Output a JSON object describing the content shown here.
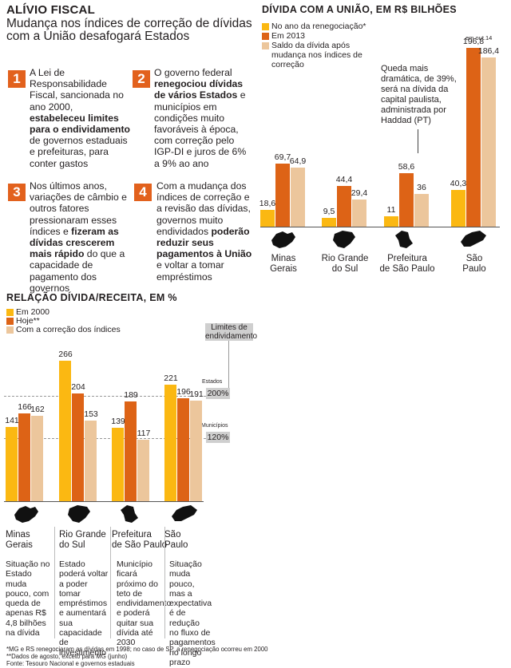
{
  "header": {
    "title": "ALÍVIO FISCAL",
    "subtitle": "Mudança nos índices de correção de dívidas com a União desafogará  Estados"
  },
  "steps": [
    {
      "num": "1",
      "html": "A Lei de Responsabilidade Fiscal, sancionada no ano 2000, <b>estabeleceu limites para o endividamento</b> de governos estaduais e prefeituras, para conter gastos"
    },
    {
      "num": "2",
      "html": "O governo federal <b>renegociou dívidas de vários Estados</b> e municípios em condições muito favoráveis à época, com correção pelo IGP-DI e juros de 6% a 9% ao ano"
    },
    {
      "num": "3",
      "html": "Nos últimos anos, variações de câmbio e outros fatores pressionaram esses índices e <b>fizeram as dívidas crescerem mais rápido</b> do que a capacidade de pagamento dos governos"
    },
    {
      "num": "4",
      "html": "Com a mudança dos índices de correção e a revisão das dívidas, governos muito endividados <b>poderão reduzir seus pagamentos à União</b> e voltar a tomar empréstimos"
    }
  ],
  "colors": {
    "yellow": "#fbb812",
    "orange": "#dd6316",
    "beige": "#ecc69c",
    "accent": "#e2611d",
    "grey": "#cfcfcf"
  },
  "chart_data": [
    {
      "type": "bar",
      "title": "DÍVIDA COM A UNIÃO, EM R$ BILHÕES",
      "categories": [
        "Minas Gerais",
        "Rio Grande do Sul",
        "Prefeitura de São Paulo",
        "São Paulo"
      ],
      "series": [
        {
          "name": "No ano da renegociação*",
          "values": [
            18.6,
            9.5,
            11,
            40.3
          ],
          "labels": [
            "18,6",
            "9,5",
            "11",
            "40,3"
          ]
        },
        {
          "name": "Em 2013",
          "values": [
            69.7,
            44.4,
            58.6,
            196.8
          ],
          "labels": [
            "69,7",
            "44,4",
            "58,6",
            "196,8"
          ]
        },
        {
          "name": "Saldo da dívida após mudança nos índices de correção",
          "values": [
            64.9,
            29.4,
            36,
            186.4
          ],
          "labels": [
            "64,9",
            "29,4",
            "36",
            "186,4"
          ]
        }
      ],
      "extra_note": "em out.14",
      "annotation": "Queda mais dramática, de 39%, será na dívida da capital paulista, administrada por Haddad (PT)",
      "legend_position": "top-left",
      "grid": false
    },
    {
      "type": "bar",
      "title": "RELAÇÃO DÍVIDA/RECEITA, EM %",
      "categories": [
        "Minas Gerais",
        "Rio Grande do Sul",
        "Prefeitura de São Paulo",
        "São Paulo"
      ],
      "series": [
        {
          "name": "Em 2000",
          "values": [
            141,
            266,
            139,
            221
          ]
        },
        {
          "name": "Hoje**",
          "values": [
            166,
            204,
            189,
            196
          ]
        },
        {
          "name": "Com a correção dos índices",
          "values": [
            162,
            153,
            117,
            191
          ]
        }
      ],
      "limits_title": "Limites de endividamento",
      "limits": [
        {
          "label": "Estados",
          "value": 200,
          "text": "200%"
        },
        {
          "label": "Municípios",
          "value": 120,
          "text": "120%"
        }
      ],
      "legend_position": "top-left",
      "grid": false
    }
  ],
  "chart1_labels": {
    "cats": [
      [
        "Minas",
        "Gerais"
      ],
      [
        "Rio Grande",
        "do Sul"
      ],
      [
        "Prefeitura",
        "de São Paulo"
      ],
      [
        "São",
        "Paulo"
      ]
    ]
  },
  "chart2_labels": {
    "cats": [
      [
        "Minas",
        "Gerais"
      ],
      [
        "Rio Grande",
        "do Sul"
      ],
      [
        "Prefeitura",
        "de São Paulo"
      ],
      [
        "São",
        "Paulo"
      ]
    ],
    "notes": [
      "Situação no Estado muda pouco, com queda de apenas R$ 4,8 bilhões na dívida",
      "Estado poderá voltar a poder tomar empréstimos e aumentará sua capacidade de investimento",
      "Município ficará próximo do teto de endividamento e poderá quitar sua dívida até 2030",
      "Situação muda pouco, mas a expectativa é de redução no fluxo de pagamentos no longo prazo"
    ]
  },
  "footnotes": [
    "*MG e RS renegociaram as dívidas em 1998; no caso de SP, a renegociação ocorreu em 2000",
    "**Dados de agosto, exceto para MG (junho)",
    "Fonte: Tesouro Nacional e governos estaduais"
  ]
}
